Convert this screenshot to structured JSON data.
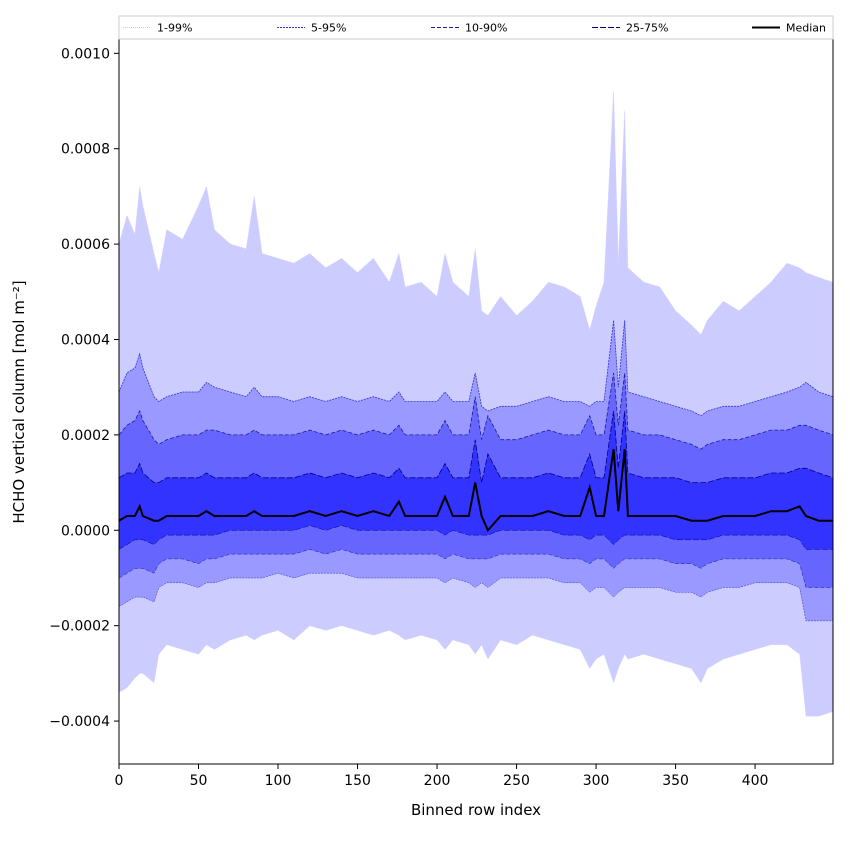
{
  "chart_data": {
    "type": "area",
    "title": "",
    "xlabel": "Binned row index",
    "ylabel": "HCHO vertical column [mol m⁻²]",
    "xlim": [
      0,
      449
    ],
    "ylim": [
      -0.00049,
      0.00103
    ],
    "x_ticks": [
      {
        "value": 0,
        "label": "0"
      },
      {
        "value": 50,
        "label": "50"
      },
      {
        "value": 100,
        "label": "100"
      },
      {
        "value": 150,
        "label": "150"
      },
      {
        "value": 200,
        "label": "200"
      },
      {
        "value": 250,
        "label": "250"
      },
      {
        "value": 300,
        "label": "300"
      },
      {
        "value": 350,
        "label": "350"
      },
      {
        "value": 400,
        "label": "400"
      }
    ],
    "y_ticks": [
      {
        "value": 0.001,
        "label": "0.0010"
      },
      {
        "value": 0.0008,
        "label": "0.0008"
      },
      {
        "value": 0.0006,
        "label": "0.0006"
      },
      {
        "value": 0.0004,
        "label": "0.0004"
      },
      {
        "value": 0.0002,
        "label": "0.0002"
      },
      {
        "value": 0.0,
        "label": "0.0000"
      },
      {
        "value": -0.0002,
        "label": "−0.0002"
      },
      {
        "value": -0.0004,
        "label": "−0.0004"
      }
    ],
    "grid": false,
    "legend_position": "top",
    "x": [
      0,
      5,
      10,
      13,
      15,
      22,
      25,
      30,
      40,
      50,
      55,
      60,
      70,
      80,
      85,
      90,
      100,
      110,
      120,
      130,
      140,
      150,
      160,
      170,
      176,
      180,
      190,
      200,
      205,
      210,
      220,
      224,
      228,
      232,
      240,
      250,
      260,
      270,
      280,
      290,
      296,
      300,
      305,
      311,
      314,
      318,
      320,
      330,
      340,
      350,
      360,
      366,
      370,
      380,
      390,
      400,
      410,
      420,
      428,
      432,
      440,
      449
    ],
    "series": [
      {
        "name": "1-99%",
        "band": [
          1,
          99
        ],
        "color": "#ccccff",
        "lower": [
          -0.00034,
          -0.00033,
          -0.00031,
          -0.0003,
          -0.0003,
          -0.00032,
          -0.00026,
          -0.00024,
          -0.00025,
          -0.00026,
          -0.00024,
          -0.00025,
          -0.00023,
          -0.00022,
          -0.00023,
          -0.00022,
          -0.00021,
          -0.00023,
          -0.0002,
          -0.00021,
          -0.0002,
          -0.00021,
          -0.00022,
          -0.00021,
          -0.00022,
          -0.00023,
          -0.00022,
          -0.00023,
          -0.00025,
          -0.00023,
          -0.00024,
          -0.00026,
          -0.00024,
          -0.00027,
          -0.00023,
          -0.00024,
          -0.00022,
          -0.00023,
          -0.00024,
          -0.00025,
          -0.00029,
          -0.00027,
          -0.00026,
          -0.00032,
          -0.00029,
          -0.00026,
          -0.00027,
          -0.00026,
          -0.00027,
          -0.00028,
          -0.00029,
          -0.00032,
          -0.00029,
          -0.00027,
          -0.00026,
          -0.00025,
          -0.00024,
          -0.00024,
          -0.00026,
          -0.00039,
          -0.00039,
          -0.00038
        ],
        "upper": [
          0.0006,
          0.00066,
          0.00062,
          0.00072,
          0.00068,
          0.00058,
          0.00054,
          0.00063,
          0.00061,
          0.00068,
          0.00072,
          0.00063,
          0.0006,
          0.00059,
          0.0007,
          0.00058,
          0.00057,
          0.00056,
          0.00058,
          0.00055,
          0.00057,
          0.00054,
          0.00057,
          0.00052,
          0.00058,
          0.00051,
          0.00052,
          0.00049,
          0.00058,
          0.00052,
          0.00049,
          0.00059,
          0.00046,
          0.00045,
          0.00049,
          0.00045,
          0.00048,
          0.00052,
          0.00051,
          0.00049,
          0.00042,
          0.00047,
          0.00052,
          0.00092,
          0.00056,
          0.00088,
          0.00055,
          0.00052,
          0.00051,
          0.00046,
          0.00043,
          0.00041,
          0.00044,
          0.00048,
          0.00046,
          0.00049,
          0.00052,
          0.00056,
          0.00055,
          0.00054,
          0.00053,
          0.00052
        ]
      },
      {
        "name": "5-95%",
        "band": [
          5,
          95
        ],
        "color": "#9999ff",
        "lower": [
          -0.00016,
          -0.00015,
          -0.00014,
          -0.00014,
          -0.00014,
          -0.00015,
          -0.00012,
          -0.00011,
          -0.00011,
          -0.00012,
          -0.00011,
          -0.00011,
          -0.0001,
          -0.0001,
          -0.0001,
          -0.0001,
          -9e-05,
          -0.0001,
          -9e-05,
          -9e-05,
          -9e-05,
          -0.0001,
          -0.0001,
          -0.0001,
          -0.0001,
          -0.0001,
          -0.0001,
          -0.0001,
          -0.00011,
          -0.0001,
          -0.00011,
          -0.00012,
          -0.00011,
          -0.00012,
          -0.0001,
          -0.0001,
          -0.0001,
          -0.0001,
          -0.00011,
          -0.00011,
          -0.00013,
          -0.00012,
          -0.00012,
          -0.00014,
          -0.00013,
          -0.00012,
          -0.00012,
          -0.00012,
          -0.00012,
          -0.00013,
          -0.00013,
          -0.00014,
          -0.00013,
          -0.00012,
          -0.00012,
          -0.00011,
          -0.00011,
          -0.00011,
          -0.00012,
          -0.00019,
          -0.00019,
          -0.00019
        ],
        "upper": [
          0.00029,
          0.00033,
          0.00034,
          0.00037,
          0.00034,
          0.00028,
          0.00027,
          0.00028,
          0.00029,
          0.00029,
          0.00031,
          0.0003,
          0.00029,
          0.00028,
          0.0003,
          0.00028,
          0.00028,
          0.00027,
          0.00028,
          0.00027,
          0.00028,
          0.00027,
          0.00028,
          0.00027,
          0.00029,
          0.00027,
          0.00027,
          0.00027,
          0.00029,
          0.00027,
          0.00027,
          0.00033,
          0.00026,
          0.00025,
          0.00026,
          0.00026,
          0.00027,
          0.00028,
          0.00027,
          0.00027,
          0.00026,
          0.00027,
          0.00027,
          0.00044,
          0.0003,
          0.00044,
          0.00029,
          0.00028,
          0.00027,
          0.00026,
          0.00025,
          0.00024,
          0.00025,
          0.00026,
          0.00026,
          0.00027,
          0.00028,
          0.00029,
          0.0003,
          0.00031,
          0.00029,
          0.00028
        ]
      },
      {
        "name": "10-90%",
        "band": [
          10,
          90
        ],
        "color": "#6666ff",
        "lower": [
          -0.0001,
          -9e-05,
          -8e-05,
          -8e-05,
          -8e-05,
          -9e-05,
          -7e-05,
          -6e-05,
          -6e-05,
          -7e-05,
          -6e-05,
          -6e-05,
          -5e-05,
          -5e-05,
          -5e-05,
          -5e-05,
          -5e-05,
          -5e-05,
          -4e-05,
          -5e-05,
          -4e-05,
          -5e-05,
          -5e-05,
          -5e-05,
          -5e-05,
          -5e-05,
          -5e-05,
          -5e-05,
          -6e-05,
          -5e-05,
          -6e-05,
          -6e-05,
          -6e-05,
          -6e-05,
          -5e-05,
          -5e-05,
          -5e-05,
          -5e-05,
          -6e-05,
          -6e-05,
          -7e-05,
          -6e-05,
          -6e-05,
          -8e-05,
          -7e-05,
          -6e-05,
          -6e-05,
          -6e-05,
          -6e-05,
          -7e-05,
          -7e-05,
          -8e-05,
          -7e-05,
          -6e-05,
          -6e-05,
          -6e-05,
          -6e-05,
          -6e-05,
          -7e-05,
          -0.00012,
          -0.00012,
          -0.00012
        ],
        "upper": [
          0.0002,
          0.00022,
          0.00023,
          0.00025,
          0.00023,
          0.00019,
          0.00018,
          0.00019,
          0.0002,
          0.0002,
          0.00021,
          0.00021,
          0.0002,
          0.0002,
          0.00021,
          0.0002,
          0.0002,
          0.0002,
          0.00021,
          0.0002,
          0.00021,
          0.0002,
          0.00021,
          0.0002,
          0.00022,
          0.0002,
          0.0002,
          0.0002,
          0.00023,
          0.0002,
          0.0002,
          0.00028,
          0.00019,
          0.00024,
          0.00019,
          0.00019,
          0.0002,
          0.00021,
          0.0002,
          0.0002,
          0.00024,
          0.0002,
          0.0002,
          0.00033,
          0.00022,
          0.00033,
          0.00021,
          0.0002,
          0.0002,
          0.00019,
          0.00018,
          0.00017,
          0.00018,
          0.00019,
          0.00019,
          0.0002,
          0.00021,
          0.00021,
          0.00022,
          0.00022,
          0.00021,
          0.0002
        ]
      },
      {
        "name": "25-75%",
        "band": [
          25,
          75
        ],
        "color": "#3333ff",
        "lower": [
          -4e-05,
          -3e-05,
          -2e-05,
          -2e-05,
          -2e-05,
          -3e-05,
          -2e-05,
          -1e-05,
          -1e-05,
          -1e-05,
          -1e-05,
          -1e-05,
          0.0,
          0.0,
          0.0,
          0.0,
          0.0,
          0.0,
          1e-05,
          0.0,
          1e-05,
          0.0,
          0.0,
          0.0,
          0.0,
          0.0,
          0.0,
          0.0,
          -1e-05,
          0.0,
          -1e-05,
          -1e-05,
          -1e-05,
          -1e-05,
          0.0,
          0.0,
          0.0,
          0.0,
          -1e-05,
          -1e-05,
          -2e-05,
          -1e-05,
          -1e-05,
          -3e-05,
          -2e-05,
          -1e-05,
          -1e-05,
          -1e-05,
          -1e-05,
          -2e-05,
          -2e-05,
          -2e-05,
          -2e-05,
          -1e-05,
          -1e-05,
          -1e-05,
          -1e-05,
          -1e-05,
          -2e-05,
          -4e-05,
          -4e-05,
          -4e-05
        ],
        "upper": [
          0.00011,
          0.00012,
          0.00012,
          0.00014,
          0.00012,
          0.0001,
          0.0001,
          0.00011,
          0.00011,
          0.00011,
          0.00012,
          0.00011,
          0.00011,
          0.00011,
          0.00012,
          0.00011,
          0.00011,
          0.00011,
          0.00012,
          0.00011,
          0.00012,
          0.00011,
          0.00012,
          0.00011,
          0.00013,
          0.00011,
          0.00011,
          0.00011,
          0.00014,
          0.00011,
          0.00011,
          0.00019,
          0.0001,
          0.00016,
          0.00011,
          0.00011,
          0.00011,
          0.00012,
          0.00011,
          0.00011,
          0.00016,
          0.00011,
          0.00011,
          0.00025,
          0.00013,
          0.00025,
          0.00012,
          0.00011,
          0.00011,
          0.00011,
          0.0001,
          0.0001,
          0.0001,
          0.00011,
          0.00011,
          0.00011,
          0.00012,
          0.00012,
          0.00013,
          0.00013,
          0.00012,
          0.00011
        ]
      },
      {
        "name": "Median",
        "color": "#000000",
        "values": [
          2e-05,
          3e-05,
          3e-05,
          5e-05,
          3e-05,
          2e-05,
          2e-05,
          3e-05,
          3e-05,
          3e-05,
          4e-05,
          3e-05,
          3e-05,
          3e-05,
          4e-05,
          3e-05,
          3e-05,
          3e-05,
          4e-05,
          3e-05,
          4e-05,
          3e-05,
          4e-05,
          3e-05,
          6e-05,
          3e-05,
          3e-05,
          3e-05,
          7e-05,
          3e-05,
          3e-05,
          0.0001,
          3e-05,
          0.0,
          3e-05,
          3e-05,
          3e-05,
          4e-05,
          3e-05,
          3e-05,
          9e-05,
          3e-05,
          3e-05,
          0.00017,
          4e-05,
          0.00017,
          3e-05,
          3e-05,
          3e-05,
          3e-05,
          2e-05,
          2e-05,
          2e-05,
          3e-05,
          3e-05,
          3e-05,
          4e-05,
          4e-05,
          5e-05,
          3e-05,
          2e-05,
          2e-05
        ]
      }
    ]
  }
}
